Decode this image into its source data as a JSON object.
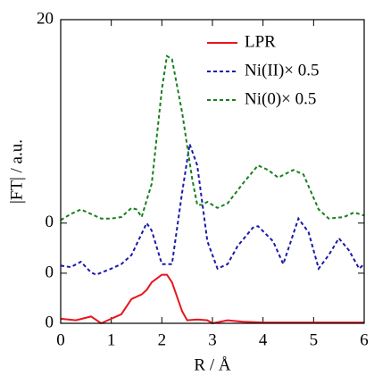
{
  "chart_data": {
    "type": "line",
    "xlabel": "R / Å",
    "ylabel": "|FT| / a.u.",
    "xlim": [
      0,
      6
    ],
    "ylim": [
      0,
      20
    ],
    "xticks": [
      0,
      1,
      2,
      3,
      4,
      5,
      6
    ],
    "yticks": [
      0,
      {
        "value": 3.3,
        "label": "0"
      },
      {
        "value": 6.6,
        "label": "0"
      },
      20
    ],
    "legend": "upper right",
    "series": [
      {
        "name": "LPR",
        "color": "#e8141c",
        "dash": "solid",
        "x": [
          0,
          0.3,
          0.6,
          0.8,
          1.0,
          1.2,
          1.4,
          1.6,
          1.7,
          1.8,
          2.0,
          2.1,
          2.2,
          2.4,
          2.5,
          2.7,
          2.9,
          3.0,
          3.3,
          3.6,
          4.0,
          5.0,
          6.0
        ],
        "values": [
          0.3,
          0.2,
          0.45,
          0,
          0.3,
          0.6,
          1.6,
          1.9,
          2.2,
          2.7,
          3.2,
          3.2,
          2.7,
          0.8,
          0.2,
          0.25,
          0.2,
          0,
          0.2,
          0.1,
          0.05,
          0.05,
          0.05
        ]
      },
      {
        "name": "Ni(II)× 0.5",
        "color": "#1a1aa8",
        "dash": "dashed",
        "x": [
          0,
          0.2,
          0.4,
          0.6,
          0.7,
          1.0,
          1.2,
          1.4,
          1.6,
          1.7,
          1.8,
          2.0,
          2.2,
          2.4,
          2.55,
          2.7,
          2.9,
          3.1,
          3.3,
          3.5,
          3.8,
          3.9,
          4.2,
          4.4,
          4.6,
          4.7,
          4.9,
          5.1,
          5.3,
          5.5,
          5.7,
          5.9,
          6.0
        ],
        "values": [
          3.8,
          3.7,
          4.05,
          3.35,
          3.2,
          3.6,
          3.9,
          4.5,
          5.9,
          6.6,
          6.1,
          3.9,
          3.9,
          8.6,
          11.8,
          10.4,
          5.4,
          3.6,
          3.9,
          5.1,
          6.3,
          6.4,
          5.4,
          3.9,
          5.9,
          6.9,
          6.0,
          3.6,
          4.5,
          5.6,
          4.8,
          3.6,
          3.9
        ]
      },
      {
        "name": "Ni(0)× 0.5",
        "color": "#17801c",
        "dash": "dashed",
        "x": [
          0,
          0.2,
          0.4,
          0.6,
          0.8,
          1.0,
          1.2,
          1.4,
          1.5,
          1.6,
          1.8,
          2.0,
          2.1,
          2.2,
          2.4,
          2.6,
          2.7,
          2.8,
          2.9,
          3.1,
          3.3,
          3.6,
          3.9,
          4.1,
          4.3,
          4.6,
          4.8,
          5.1,
          5.3,
          5.6,
          5.8,
          6.0
        ],
        "values": [
          6.8,
          7.2,
          7.5,
          7.2,
          6.9,
          6.9,
          7.0,
          7.6,
          7.5,
          7.0,
          9.2,
          15.4,
          17.6,
          17.4,
          13.9,
          9.5,
          7.8,
          7.8,
          8.0,
          7.6,
          7.9,
          9.2,
          10.4,
          10.1,
          9.6,
          10.1,
          9.8,
          7.5,
          6.9,
          7.0,
          7.3,
          7.1
        ]
      }
    ]
  }
}
